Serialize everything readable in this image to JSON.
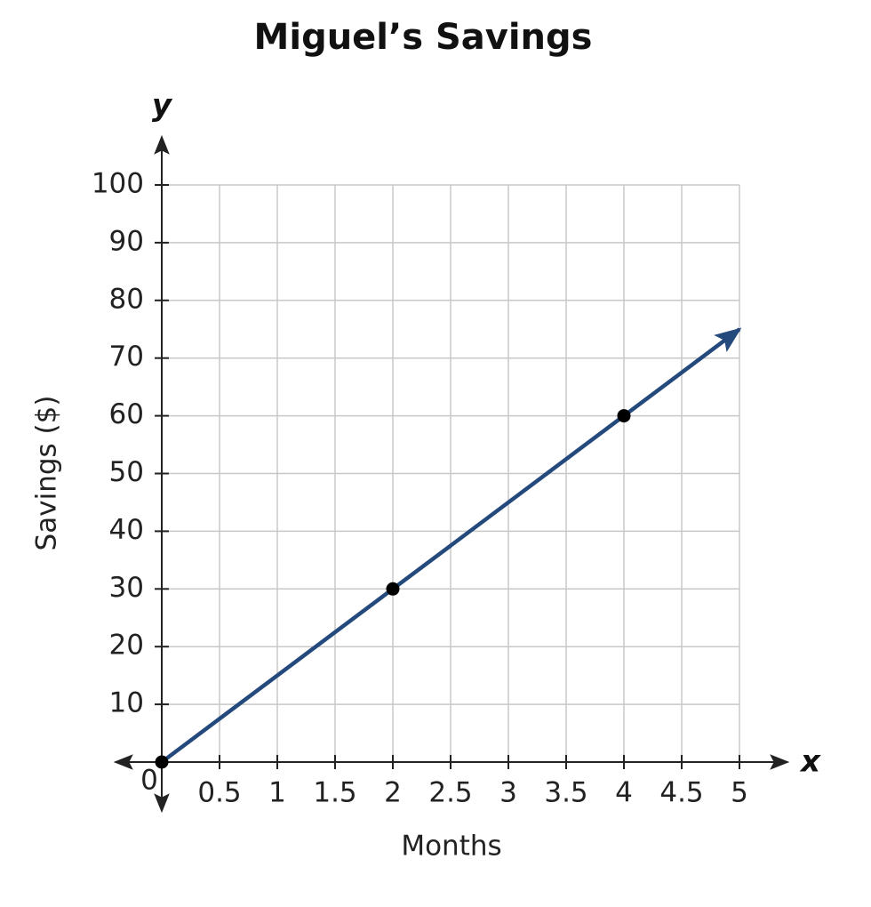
{
  "chart_data": {
    "type": "line",
    "title": "Miguel’s Savings",
    "x_axis_symbol": "x",
    "y_axis_symbol": "y",
    "x_label": "Months",
    "y_label": "Savings ($)",
    "xlim": [
      0,
      5
    ],
    "ylim": [
      0,
      100
    ],
    "xticks": [
      0,
      0.5,
      1,
      1.5,
      2,
      2.5,
      3,
      3.5,
      4,
      4.5,
      5
    ],
    "yticks": [
      10,
      20,
      30,
      40,
      50,
      60,
      70,
      80,
      90,
      100
    ],
    "grid": true,
    "series": [
      {
        "x": [
          0,
          5
        ],
        "values": [
          0,
          75
        ],
        "color": "#24497c"
      }
    ],
    "points": {
      "x": [
        0,
        2,
        4
      ],
      "y": [
        0,
        30,
        60
      ],
      "color": "#000000"
    }
  }
}
